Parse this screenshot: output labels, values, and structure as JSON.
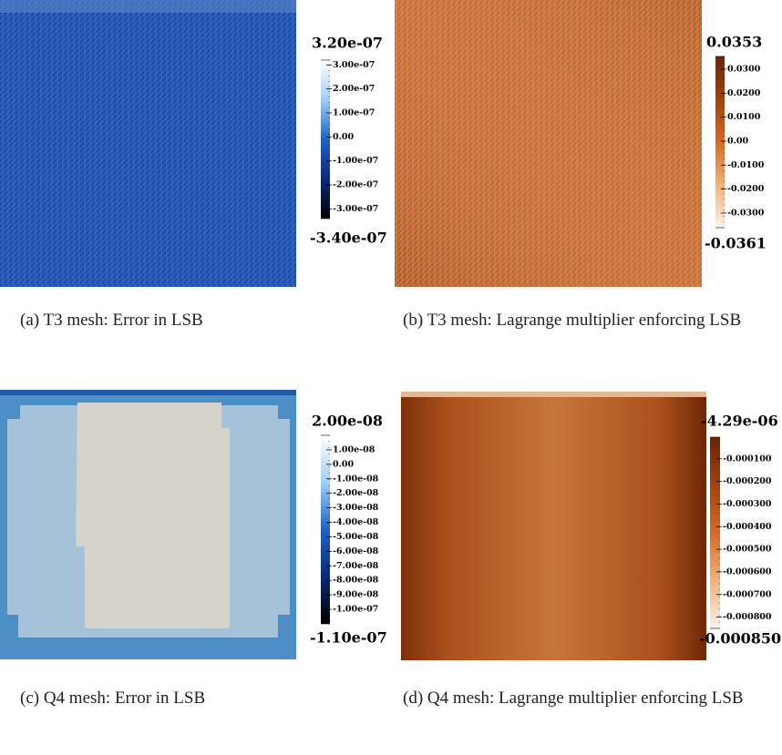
{
  "panels": [
    {
      "caption": "(a) T3 mesh: Error in LSB",
      "colorbar": {
        "colors": [
          "#000000",
          "#0a2a78",
          "#1f63c6",
          "#9fcff5",
          "#ffffff"
        ],
        "max": {
          "value": 3.2e-07,
          "label": "3.20e-07"
        },
        "min": {
          "value": -3.4e-07,
          "label": "-3.40e-07"
        },
        "ticks": [
          {
            "value": 3e-07,
            "label": "3.00e-07"
          },
          {
            "value": 2e-07,
            "label": "2.00e-07"
          },
          {
            "value": 1e-07,
            "label": "1.00e-07"
          },
          {
            "value": 0,
            "label": "0.00"
          },
          {
            "value": -1e-07,
            "label": "-1.00e-07"
          },
          {
            "value": -2e-07,
            "label": "-2.00e-07"
          },
          {
            "value": -3e-07,
            "label": "-3.00e-07"
          }
        ]
      }
    },
    {
      "caption": "(b) T3 mesh: Lagrange multiplier enforcing LSB",
      "colorbar": {
        "colors": [
          "#fdf3ea",
          "#f3b07a",
          "#d66a25",
          "#a2420c",
          "#6b2404"
        ],
        "max": {
          "value": 0.0353,
          "label": "0.0353"
        },
        "min": {
          "value": -0.0361,
          "label": "-0.0361"
        },
        "ticks": [
          {
            "value": 0.03,
            "label": "0.0300"
          },
          {
            "value": 0.02,
            "label": "0.0200"
          },
          {
            "value": 0.01,
            "label": "0.0100"
          },
          {
            "value": 0,
            "label": "0.00"
          },
          {
            "value": -0.01,
            "label": "-0.0100"
          },
          {
            "value": -0.02,
            "label": "-0.0200"
          },
          {
            "value": -0.03,
            "label": "-0.0300"
          }
        ]
      }
    },
    {
      "caption": "(c) Q4 mesh: Error in LSB",
      "colorbar": {
        "colors": [
          "#000000",
          "#0a2a78",
          "#1f63c6",
          "#9fcff5",
          "#ffffff"
        ],
        "max": {
          "value": 2e-08,
          "label": "2.00e-08"
        },
        "min": {
          "value": -1.1e-07,
          "label": "-1.10e-07"
        },
        "ticks": [
          {
            "value": 1e-08,
            "label": "1.00e-08"
          },
          {
            "value": 0,
            "label": "0.00"
          },
          {
            "value": -1e-08,
            "label": "-1.00e-08"
          },
          {
            "value": -2e-08,
            "label": "-2.00e-08"
          },
          {
            "value": -3e-08,
            "label": "-3.00e-08"
          },
          {
            "value": -4e-08,
            "label": "-4.00e-08"
          },
          {
            "value": -5e-08,
            "label": "-5.00e-08"
          },
          {
            "value": -6e-08,
            "label": "-6.00e-08"
          },
          {
            "value": -7e-08,
            "label": "-7.00e-08"
          },
          {
            "value": -8e-08,
            "label": "-8.00e-08"
          },
          {
            "value": -9e-08,
            "label": "-9.00e-08"
          },
          {
            "value": -1e-07,
            "label": "-1.00e-07"
          }
        ]
      }
    },
    {
      "caption": "(d) Q4 mesh: Lagrange multiplier enforcing LSB",
      "colorbar": {
        "colors": [
          "#fdf3ea",
          "#f3b07a",
          "#d66a25",
          "#a2420c",
          "#6b2404"
        ],
        "max": {
          "value": -4.29e-06,
          "label": "-4.29e-06"
        },
        "min": {
          "value": -0.00085,
          "label": "-0.000850"
        },
        "ticks": [
          {
            "value": -0.0001,
            "label": "-0.000100"
          },
          {
            "value": -0.0002,
            "label": "-0.000200"
          },
          {
            "value": -0.0003,
            "label": "-0.000300"
          },
          {
            "value": -0.0004,
            "label": "-0.000400"
          },
          {
            "value": -0.0005,
            "label": "-0.000500"
          },
          {
            "value": -0.0006,
            "label": "-0.000600"
          },
          {
            "value": -0.0007,
            "label": "-0.000700"
          },
          {
            "value": -0.0008,
            "label": "-0.000800"
          }
        ]
      }
    }
  ]
}
